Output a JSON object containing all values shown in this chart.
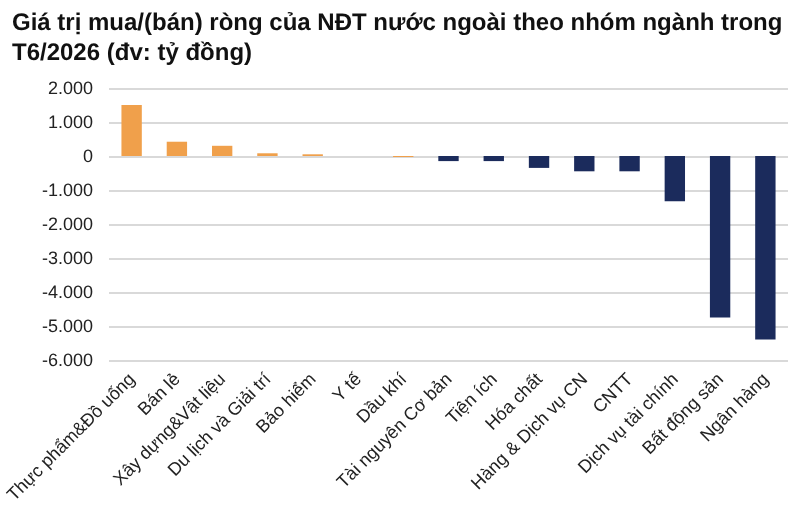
{
  "chart_data": {
    "type": "bar",
    "title": "Giá trị mua/(bán) ròng của NĐT nước ngoài theo nhóm ngành trong T6/2026 (đv: tỷ đồng)",
    "categories": [
      "Thực phẩm&Đồ uống",
      "Bán lẻ",
      "Xây dựng&Vật liệu",
      "Du lịch và Giải trí",
      "Bảo hiểm",
      "Y tế",
      "Dầu khí",
      "Tài nguyên Cơ bản",
      "Tiện ích",
      "Hóa chất",
      "Hàng & Dịch vụ CN",
      "CNTT",
      "Dịch vụ tài chính",
      "Bất động sản",
      "Ngân hàng"
    ],
    "values": [
      1500,
      420,
      300,
      80,
      50,
      0,
      -30,
      -150,
      -150,
      -350,
      -450,
      -450,
      -1330,
      -4750,
      -5400
    ],
    "colors": [
      "#f0a04b",
      "#f0a04b",
      "#f0a04b",
      "#f0a04b",
      "#f0a04b",
      "#f0a04b",
      "#f0a04b",
      "#1b2b5c",
      "#1b2b5c",
      "#1b2b5c",
      "#1b2b5c",
      "#1b2b5c",
      "#1b2b5c",
      "#1b2b5c",
      "#1b2b5c"
    ],
    "ylim": [
      -6000,
      2000
    ],
    "yticks": [
      {
        "value": -6000,
        "label": "-6.000"
      },
      {
        "value": -5000,
        "label": "-5.000"
      },
      {
        "value": -4000,
        "label": "-4.000"
      },
      {
        "value": -3000,
        "label": "-3.000"
      },
      {
        "value": -2000,
        "label": "-2.000"
      },
      {
        "value": -1000,
        "label": "-1.000"
      },
      0,
      {
        "value": 1000,
        "label": "1.000"
      },
      {
        "value": 2000,
        "label": "2.000"
      }
    ],
    "grid": "y"
  }
}
